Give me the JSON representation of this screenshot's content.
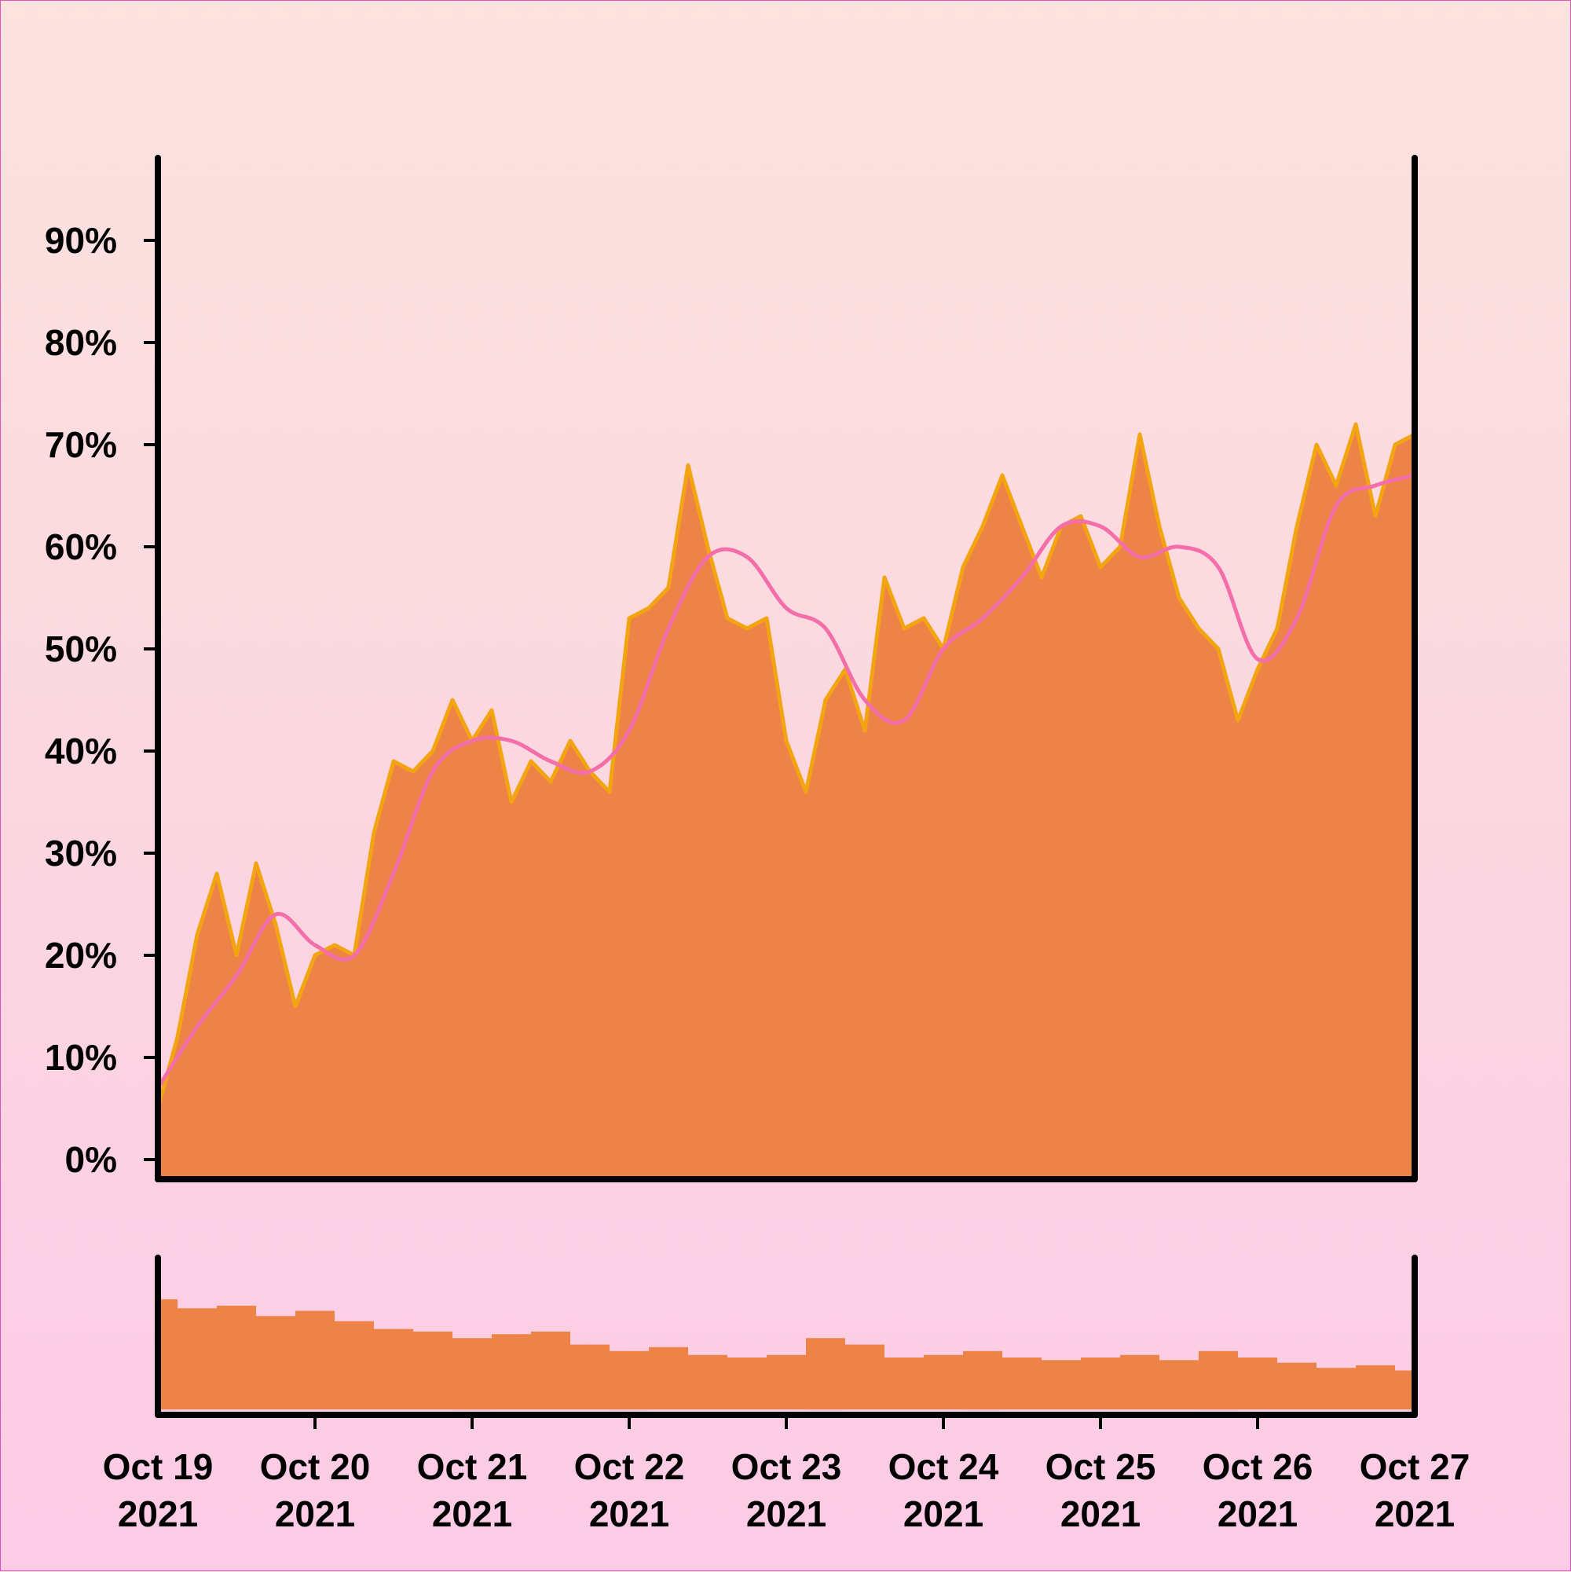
{
  "colors": {
    "area_fill": "#ee8347",
    "area_edge": "#f2a511",
    "moving_average": "#f46fa9",
    "axis": "#000000",
    "volume_fill": "#ee8347"
  },
  "chart_data": {
    "type": "area",
    "title": "",
    "xlabel": "",
    "ylabel": "",
    "x_range": [
      "2021-10-19",
      "2021-10-27"
    ],
    "ylim": [
      0,
      100
    ],
    "y_ticks": [
      0,
      10,
      20,
      30,
      40,
      50,
      60,
      70,
      80,
      90
    ],
    "y_tick_labels": [
      "0%",
      "10%",
      "20%",
      "30%",
      "40%",
      "50%",
      "60%",
      "70%",
      "80%",
      "90%"
    ],
    "x_ticks": [
      "2021-10-19",
      "2021-10-20",
      "2021-10-21",
      "2021-10-22",
      "2021-10-23",
      "2021-10-24",
      "2021-10-25",
      "2021-10-26",
      "2021-10-27"
    ],
    "x_tick_labels": [
      [
        "Oct 19",
        "2021"
      ],
      [
        "Oct 20",
        "2021"
      ],
      [
        "Oct 21",
        "2021"
      ],
      [
        "Oct 22",
        "2021"
      ],
      [
        "Oct 23",
        "2021"
      ],
      [
        "Oct 24",
        "2021"
      ],
      [
        "Oct 25",
        "2021"
      ],
      [
        "Oct 26",
        "2021"
      ],
      [
        "Oct 27",
        "2021"
      ]
    ],
    "grid": false,
    "series": [
      {
        "kind": "area",
        "x": [
          "2021-10-19 00:00",
          "2021-10-19 03:00",
          "2021-10-19 06:00",
          "2021-10-19 09:00",
          "2021-10-19 12:00",
          "2021-10-19 15:00",
          "2021-10-19 18:00",
          "2021-10-19 21:00",
          "2021-10-20 00:00",
          "2021-10-20 03:00",
          "2021-10-20 06:00",
          "2021-10-20 09:00",
          "2021-10-20 12:00",
          "2021-10-20 15:00",
          "2021-10-20 18:00",
          "2021-10-20 21:00",
          "2021-10-21 00:00",
          "2021-10-21 03:00",
          "2021-10-21 06:00",
          "2021-10-21 09:00",
          "2021-10-21 12:00",
          "2021-10-21 15:00",
          "2021-10-21 18:00",
          "2021-10-21 21:00",
          "2021-10-22 00:00",
          "2021-10-22 03:00",
          "2021-10-22 06:00",
          "2021-10-22 09:00",
          "2021-10-22 12:00",
          "2021-10-22 15:00",
          "2021-10-22 18:00",
          "2021-10-22 21:00",
          "2021-10-23 00:00",
          "2021-10-23 03:00",
          "2021-10-23 06:00",
          "2021-10-23 09:00",
          "2021-10-23 12:00",
          "2021-10-23 15:00",
          "2021-10-23 18:00",
          "2021-10-23 21:00",
          "2021-10-24 00:00",
          "2021-10-24 03:00",
          "2021-10-24 06:00",
          "2021-10-24 09:00",
          "2021-10-24 12:00",
          "2021-10-24 15:00",
          "2021-10-24 18:00",
          "2021-10-24 21:00",
          "2021-10-25 00:00",
          "2021-10-25 03:00",
          "2021-10-25 06:00",
          "2021-10-25 09:00",
          "2021-10-25 12:00",
          "2021-10-25 15:00",
          "2021-10-25 18:00",
          "2021-10-25 21:00",
          "2021-10-26 00:00",
          "2021-10-26 03:00",
          "2021-10-26 06:00",
          "2021-10-26 09:00",
          "2021-10-26 12:00",
          "2021-10-26 15:00",
          "2021-10-26 18:00",
          "2021-10-26 21:00",
          "2021-10-27 00:00"
        ],
        "y": [
          5,
          12,
          22,
          28,
          20,
          29,
          23,
          15,
          20,
          21,
          20,
          32,
          39,
          38,
          40,
          45,
          41,
          44,
          35,
          39,
          37,
          41,
          38,
          36,
          53,
          54,
          56,
          68,
          60,
          53,
          52,
          53,
          41,
          36,
          45,
          48,
          42,
          57,
          52,
          53,
          50,
          58,
          62,
          67,
          62,
          57,
          62,
          63,
          58,
          60,
          71,
          62,
          55,
          52,
          50,
          43,
          48,
          52,
          62,
          70,
          66,
          72,
          63,
          70,
          71
        ]
      },
      {
        "kind": "line",
        "x": [
          "2021-10-19 00:00",
          "2021-10-19 06:00",
          "2021-10-19 12:00",
          "2021-10-19 18:00",
          "2021-10-20 00:00",
          "2021-10-20 06:00",
          "2021-10-20 12:00",
          "2021-10-20 18:00",
          "2021-10-21 00:00",
          "2021-10-21 06:00",
          "2021-10-21 12:00",
          "2021-10-21 18:00",
          "2021-10-22 00:00",
          "2021-10-22 06:00",
          "2021-10-22 12:00",
          "2021-10-22 18:00",
          "2021-10-23 00:00",
          "2021-10-23 06:00",
          "2021-10-23 12:00",
          "2021-10-23 18:00",
          "2021-10-24 00:00",
          "2021-10-24 06:00",
          "2021-10-24 12:00",
          "2021-10-24 18:00",
          "2021-10-25 00:00",
          "2021-10-25 06:00",
          "2021-10-25 12:00",
          "2021-10-25 18:00",
          "2021-10-26 00:00",
          "2021-10-26 06:00",
          "2021-10-26 12:00",
          "2021-10-26 18:00",
          "2021-10-27 00:00"
        ],
        "y": [
          7,
          13,
          18,
          24,
          21,
          20,
          28,
          38,
          41,
          41,
          39,
          38,
          42,
          52,
          59,
          59,
          54,
          52,
          45,
          43,
          50,
          53,
          57,
          62,
          62,
          59,
          60,
          58,
          49,
          53,
          64,
          66,
          67
        ]
      }
    ],
    "volume": {
      "x": [
        "2021-10-19 00:00",
        "2021-10-19 06:00",
        "2021-10-19 12:00",
        "2021-10-19 18:00",
        "2021-10-20 00:00",
        "2021-10-20 06:00",
        "2021-10-20 12:00",
        "2021-10-20 18:00",
        "2021-10-21 00:00",
        "2021-10-21 06:00",
        "2021-10-21 12:00",
        "2021-10-21 18:00",
        "2021-10-22 00:00",
        "2021-10-22 06:00",
        "2021-10-22 12:00",
        "2021-10-22 18:00",
        "2021-10-23 00:00",
        "2021-10-23 06:00",
        "2021-10-23 12:00",
        "2021-10-23 18:00",
        "2021-10-24 00:00",
        "2021-10-24 06:00",
        "2021-10-24 12:00",
        "2021-10-24 18:00",
        "2021-10-25 00:00",
        "2021-10-25 06:00",
        "2021-10-25 12:00",
        "2021-10-25 18:00",
        "2021-10-26 00:00",
        "2021-10-26 06:00",
        "2021-10-26 12:00",
        "2021-10-26 18:00",
        "2021-10-27 00:00"
      ],
      "values": [
        0.85,
        0.78,
        0.8,
        0.72,
        0.76,
        0.68,
        0.62,
        0.6,
        0.55,
        0.58,
        0.6,
        0.5,
        0.45,
        0.48,
        0.42,
        0.4,
        0.42,
        0.55,
        0.5,
        0.4,
        0.42,
        0.45,
        0.4,
        0.38,
        0.4,
        0.42,
        0.38,
        0.45,
        0.4,
        0.36,
        0.32,
        0.34,
        0.3
      ],
      "ylim": [
        0,
        1
      ]
    }
  }
}
